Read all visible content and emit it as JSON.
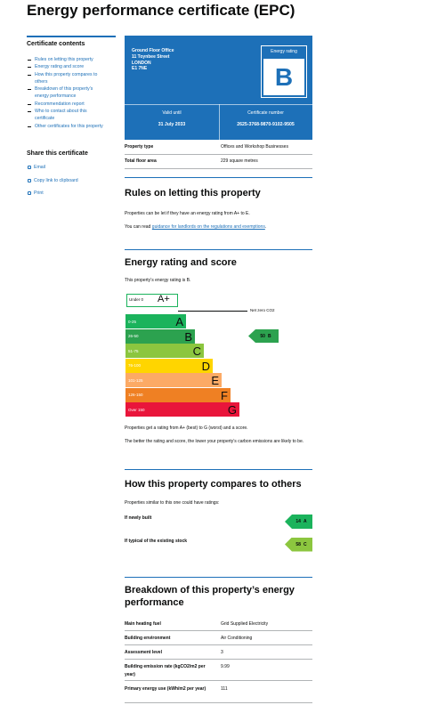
{
  "title": "Energy performance certificate (EPC)",
  "sidebar": {
    "contents_heading": "Certificate contents",
    "contents": [
      "Rules on letting this property",
      "Energy rating and score",
      "How this property compares to others",
      "Breakdown of this property’s energy performance",
      "Recommendation report",
      "Who to contact about this certificate",
      "Other certificates for this property"
    ],
    "share_heading": "Share this certificate",
    "share_links": [
      "Email",
      "Copy link to clipboard",
      "Print"
    ]
  },
  "summary": {
    "address": [
      "Ground Floor Office",
      "11 Toynbee Street",
      "LONDON",
      "E1 7NE"
    ],
    "rating_label": "Energy rating",
    "rating": "B",
    "valid_until_label": "Valid until",
    "valid_until": "31 July 2033",
    "certificate_number_label": "Certificate number",
    "certificate_number": "2625-3768-9870-9102-9505"
  },
  "property": {
    "rows": [
      [
        "Property type",
        "Offices and Workshop Businesses"
      ],
      [
        "Total floor area",
        "229 square metres"
      ]
    ]
  },
  "letting": {
    "heading": "Rules on letting this property",
    "text": "Properties can be let if they have an energy rating from A+ to E.",
    "guidance_prefix": "You can read",
    "guidance_link": "guidance for landlords on the regulations and exemptions",
    "guidance_suffix": "."
  },
  "rating": {
    "heading": "Energy rating and score",
    "intro": "This property’s energy rating is B.",
    "bands": [
      {
        "range": "Under 0",
        "letter": "A+",
        "color": "#1bb35c"
      },
      {
        "range": "0-25",
        "letter": "A",
        "color": "#1bb35c"
      },
      {
        "range": "26-50",
        "letter": "B",
        "color": "#2ca24f"
      },
      {
        "range": "51-75",
        "letter": "C",
        "color": "#8cc63f"
      },
      {
        "range": "76-100",
        "letter": "D",
        "color": "#ffd500"
      },
      {
        "range": "101-125",
        "letter": "E",
        "color": "#fcaa65"
      },
      {
        "range": "126-150",
        "letter": "F",
        "color": "#ef8023"
      },
      {
        "range": "Over 150",
        "letter": "G",
        "color": "#e9153b"
      }
    ],
    "net_zero_label": "Net zero CO2",
    "current": {
      "score": 50,
      "band": "B"
    },
    "note1": "Properties get a rating from A+ (best) to G (worst) and a score.",
    "note2": "The better the rating and score, the lower your property’s carbon emissions are likely to be."
  },
  "compare": {
    "heading": "How this property compares to others",
    "intro": "Properties similar to this one could have ratings:",
    "rows": [
      {
        "label": "If newly built",
        "score": 14,
        "band": "A"
      },
      {
        "label": "If typical of the existing stock",
        "score": 58,
        "band": "C"
      }
    ]
  },
  "breakdown": {
    "heading": "Breakdown of this property’s energy performance",
    "rows": [
      [
        "Main heating fuel",
        "Grid Supplied Electricity"
      ],
      [
        "Building environment",
        "Air Conditioning"
      ],
      [
        "Assessment level",
        3
      ],
      [
        "Building emission rate (kgCO2/m2 per year)",
        9.99
      ],
      [
        "Primary energy use (kWh/m2 per year)",
        111
      ]
    ]
  }
}
